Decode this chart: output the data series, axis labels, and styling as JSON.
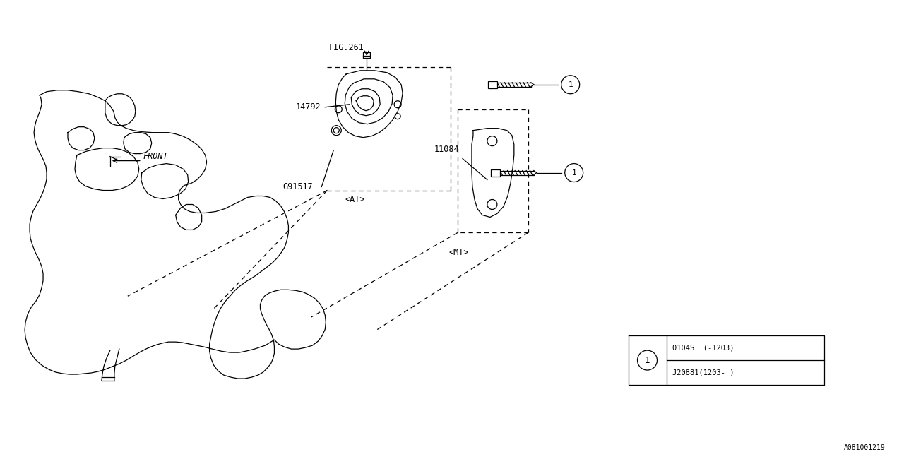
{
  "bg_color": "#ffffff",
  "line_color": "#000000",
  "fig_width": 12.8,
  "fig_height": 6.4,
  "label_fig261": "FIG.261",
  "label_14792": "14792",
  "label_G91517": "G91517",
  "label_AT": "<AT>",
  "label_11084": "11084",
  "label_MT": "<MT>",
  "label_FRONT": "FRONT",
  "part1_row1": "0104S  (-1203)",
  "part1_row2": "J20881(1203- )",
  "watermark": "A081001219",
  "circle_label": "1"
}
